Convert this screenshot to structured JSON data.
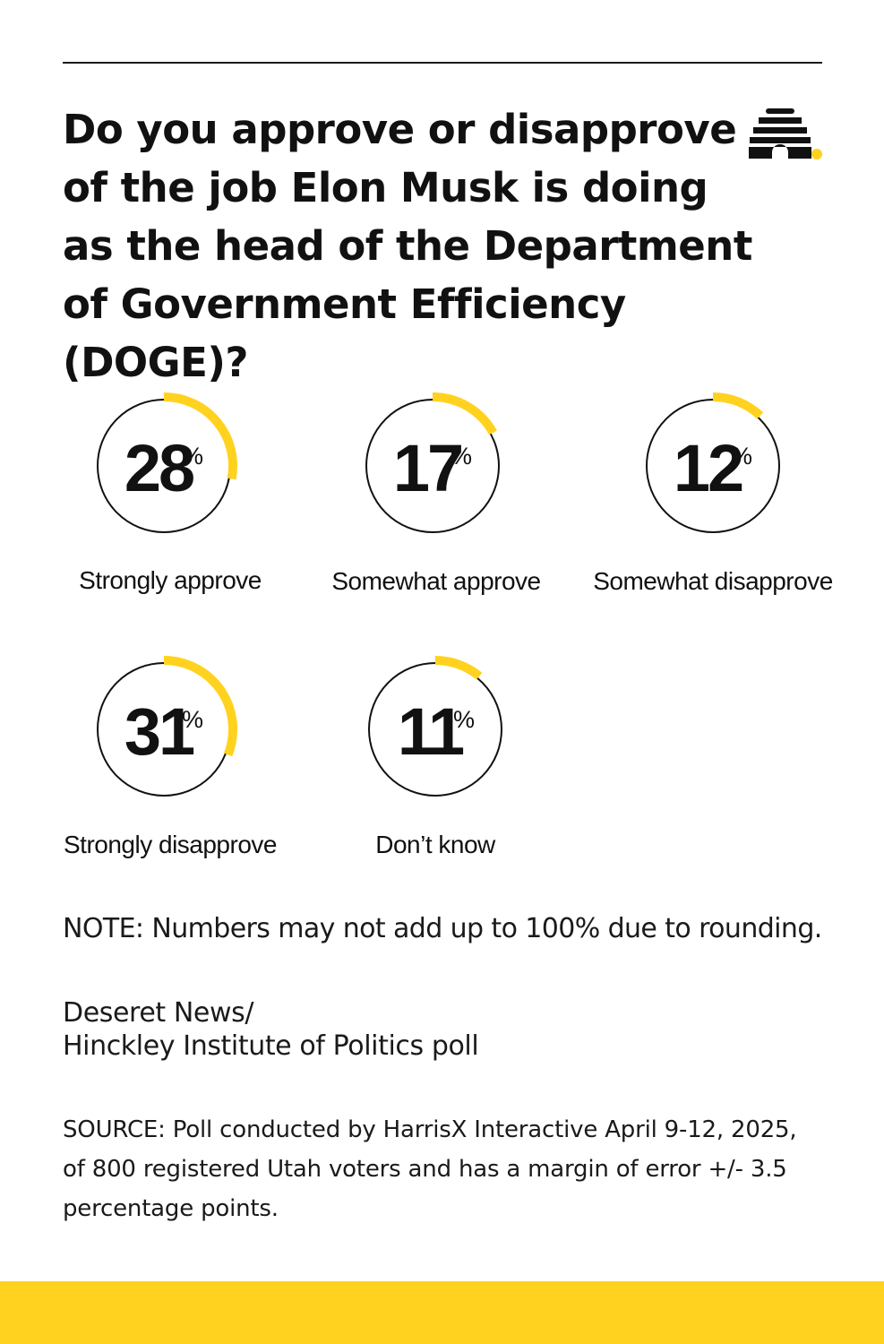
{
  "title": "Do you approve or disapprove of the job Elon Musk is doing as the head of the Department of Government Efficiency (DOGE)?",
  "colors": {
    "accent": "#FFD21F",
    "ink": "#111111",
    "background": "#FFFFFF"
  },
  "logo": {
    "icon": "beehive-icon"
  },
  "chart_data": {
    "type": "pie",
    "subtype": "donut-gauges",
    "unit": "%",
    "categories": [
      "Strongly approve",
      "Somewhat approve",
      "Somewhat disapprove",
      "Strongly disapprove",
      "Don’t know"
    ],
    "values": [
      28,
      17,
      12,
      31,
      11
    ],
    "items": [
      {
        "label": "Strongly approve",
        "value": 28,
        "display": "28"
      },
      {
        "label": "Somewhat approve",
        "value": 17,
        "display": "17"
      },
      {
        "label": "Somewhat disapprove",
        "value": 12,
        "display": "12"
      },
      {
        "label": "Strongly disapprove",
        "value": 31,
        "display": "31"
      },
      {
        "label": "Don’t know",
        "value": 11,
        "display": "11"
      }
    ],
    "percent_symbol": "%"
  },
  "note": "NOTE: Numbers may not add up to 100% due to rounding.",
  "credit": {
    "line1": "Deseret News/",
    "line2": "Hinckley Institute of Politics poll"
  },
  "source": "SOURCE: Poll conducted by HarrisX Interactive April 9-12, 2025, of 800 registered Utah voters and has a margin of error +/- 3.5 percentage points."
}
